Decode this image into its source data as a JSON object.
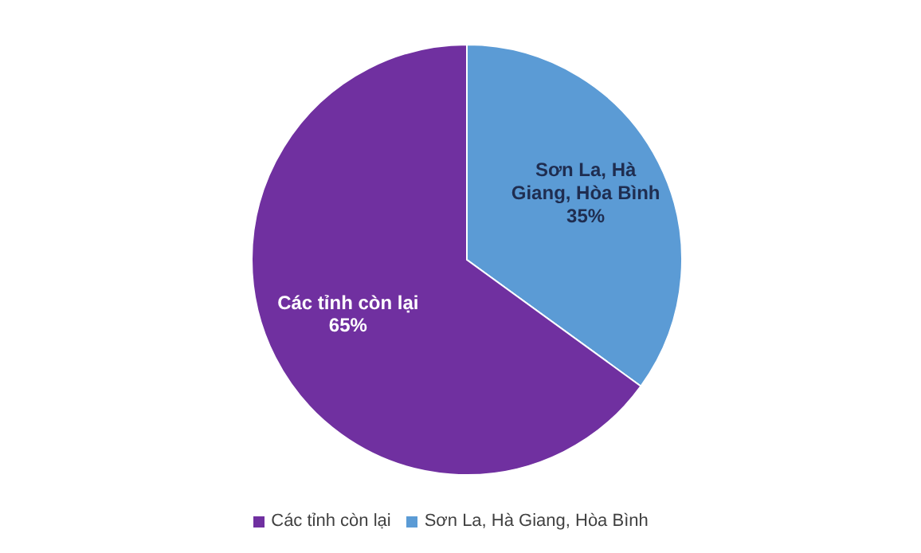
{
  "chart_data": {
    "type": "pie",
    "categories": [
      "Sơn La, Hà Giang, Hòa Bình",
      "Các tỉnh còn lại"
    ],
    "values": [
      35,
      65
    ],
    "colors": [
      "#5b9bd5",
      "#7030a0"
    ],
    "value_labels": [
      "35%",
      "65%"
    ],
    "legend": "bottom"
  }
}
